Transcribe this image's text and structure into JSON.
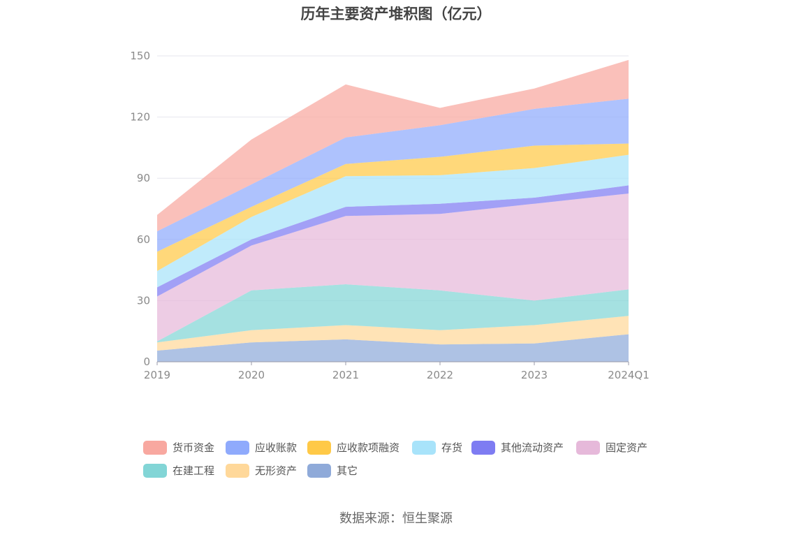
{
  "chart_data": {
    "type": "area",
    "stacked": true,
    "title": "历年主要资产堆积图（亿元）",
    "x": [
      "2019",
      "2020",
      "2021",
      "2022",
      "2023",
      "2024Q1"
    ],
    "ylim": [
      0,
      150
    ],
    "yticks": [
      0,
      30,
      60,
      90,
      120,
      150
    ],
    "grid": true,
    "legend_position": "bottom",
    "series": [
      {
        "name": "其它",
        "color": "#8FAAD9",
        "values": [
          5.5,
          9.5,
          11,
          8.5,
          9,
          13.5
        ]
      },
      {
        "name": "无形资产",
        "color": "#FFD89A",
        "values": [
          4,
          6,
          7,
          7,
          9,
          9
        ]
      },
      {
        "name": "在建工程",
        "color": "#82D5D6",
        "values": [
          0.5,
          19.5,
          20,
          19.5,
          12,
          13
        ]
      },
      {
        "name": "固定资产",
        "color": "#E6B9DA",
        "values": [
          22,
          22,
          33.5,
          37.5,
          47.5,
          47
        ]
      },
      {
        "name": "其他流动资产",
        "color": "#7E7CF2",
        "values": [
          4.5,
          3,
          4.5,
          5,
          3,
          4
        ]
      },
      {
        "name": "存货",
        "color": "#A8E3FA",
        "values": [
          8,
          11,
          15,
          14,
          14.5,
          15
        ]
      },
      {
        "name": "应收款项融资",
        "color": "#FFC947",
        "values": [
          9.5,
          5,
          6,
          9,
          11,
          5.5
        ]
      },
      {
        "name": "应收账款",
        "color": "#8FAAFC",
        "values": [
          10,
          11,
          13,
          15.5,
          18,
          22
        ]
      },
      {
        "name": "货币资金",
        "color": "#F8A8A0",
        "values": [
          8,
          22,
          26,
          8.5,
          10,
          19
        ]
      }
    ],
    "legend_order": [
      "货币资金",
      "应收账款",
      "应收款项融资",
      "存货",
      "其他流动资产",
      "固定资产",
      "在建工程",
      "无形资产",
      "其它"
    ]
  },
  "source": "数据来源：恒生聚源"
}
